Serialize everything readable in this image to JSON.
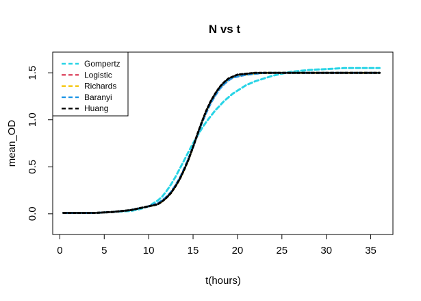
{
  "chart_data": {
    "type": "line",
    "title": "N vs t",
    "xlabel": "t(hours)",
    "ylabel": "mean_OD",
    "xlim": [
      -0.8,
      37.5
    ],
    "ylim": [
      -0.22,
      1.72
    ],
    "x_ticks": [
      0,
      5,
      10,
      15,
      20,
      25,
      30,
      35
    ],
    "y_ticks": [
      0.0,
      0.5,
      1.0,
      1.5
    ],
    "x_tick_labels": [
      "0",
      "5",
      "10",
      "15",
      "20",
      "25",
      "30",
      "35"
    ],
    "y_tick_labels": [
      "0.0",
      "0.5",
      "1.0",
      "1.5"
    ],
    "grid": false,
    "legend_position": "top-left",
    "x": [
      0.4,
      2,
      4,
      6,
      8,
      9,
      10,
      11,
      11.5,
      12,
      12.5,
      13,
      13.5,
      14,
      14.5,
      15,
      15.5,
      16,
      16.5,
      17,
      17.5,
      18,
      18.5,
      19,
      19.5,
      20,
      21,
      22,
      23,
      24,
      25,
      26,
      27,
      28,
      30,
      32,
      34,
      36
    ],
    "series": [
      {
        "name": "Gompertz",
        "color": "#29d4e6",
        "values": [
          0.01,
          0.01,
          0.01,
          0.02,
          0.03,
          0.05,
          0.08,
          0.14,
          0.18,
          0.24,
          0.31,
          0.39,
          0.48,
          0.57,
          0.66,
          0.75,
          0.83,
          0.91,
          0.98,
          1.04,
          1.1,
          1.15,
          1.2,
          1.24,
          1.28,
          1.31,
          1.37,
          1.41,
          1.44,
          1.47,
          1.49,
          1.51,
          1.52,
          1.53,
          1.54,
          1.55,
          1.55,
          1.55
        ]
      },
      {
        "name": "Logistic",
        "color": "#df536b",
        "values": [
          0.01,
          0.01,
          0.01,
          0.02,
          0.04,
          0.06,
          0.08,
          0.11,
          0.14,
          0.18,
          0.23,
          0.3,
          0.38,
          0.48,
          0.59,
          0.71,
          0.84,
          0.97,
          1.08,
          1.18,
          1.26,
          1.33,
          1.38,
          1.42,
          1.45,
          1.46,
          1.48,
          1.49,
          1.5,
          1.5,
          1.5,
          1.5,
          1.5,
          1.5,
          1.5,
          1.5,
          1.5,
          1.5
        ]
      },
      {
        "name": "Richards",
        "color": "#f5c710",
        "values": [
          0.01,
          0.01,
          0.01,
          0.02,
          0.04,
          0.06,
          0.08,
          0.1,
          0.13,
          0.17,
          0.22,
          0.29,
          0.37,
          0.47,
          0.58,
          0.71,
          0.84,
          0.97,
          1.09,
          1.19,
          1.27,
          1.34,
          1.39,
          1.43,
          1.45,
          1.47,
          1.48,
          1.49,
          1.5,
          1.5,
          1.5,
          1.5,
          1.5,
          1.5,
          1.5,
          1.5,
          1.5,
          1.5
        ]
      },
      {
        "name": "Baranyi",
        "color": "#2297e6",
        "values": [
          0.01,
          0.01,
          0.01,
          0.02,
          0.04,
          0.06,
          0.08,
          0.11,
          0.14,
          0.18,
          0.23,
          0.3,
          0.38,
          0.48,
          0.59,
          0.71,
          0.84,
          0.97,
          1.08,
          1.18,
          1.26,
          1.33,
          1.38,
          1.42,
          1.45,
          1.46,
          1.48,
          1.49,
          1.5,
          1.5,
          1.5,
          1.5,
          1.5,
          1.5,
          1.5,
          1.5,
          1.5,
          1.5
        ]
      },
      {
        "name": "Huang",
        "color": "#000000",
        "values": [
          0.01,
          0.01,
          0.01,
          0.02,
          0.04,
          0.06,
          0.08,
          0.1,
          0.13,
          0.17,
          0.22,
          0.29,
          0.37,
          0.47,
          0.58,
          0.71,
          0.85,
          0.98,
          1.1,
          1.2,
          1.28,
          1.35,
          1.4,
          1.44,
          1.46,
          1.48,
          1.49,
          1.5,
          1.5,
          1.5,
          1.5,
          1.5,
          1.5,
          1.5,
          1.5,
          1.5,
          1.5,
          1.5
        ]
      }
    ]
  }
}
